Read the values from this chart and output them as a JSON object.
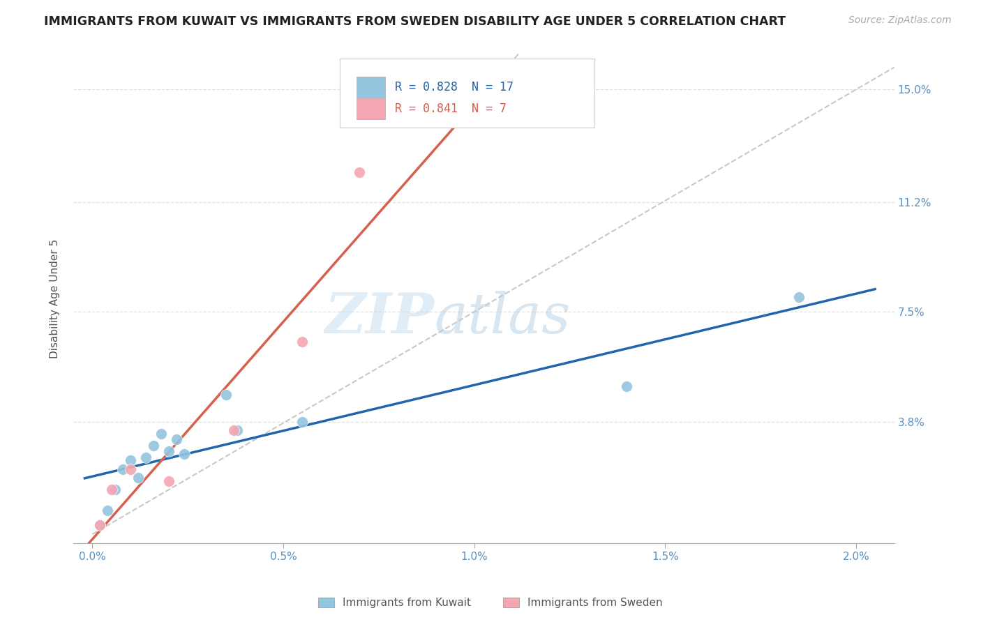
{
  "title": "IMMIGRANTS FROM KUWAIT VS IMMIGRANTS FROM SWEDEN DISABILITY AGE UNDER 5 CORRELATION CHART",
  "source": "Source: ZipAtlas.com",
  "ylabel": "Disability Age Under 5",
  "legend_label_1": "Immigrants from Kuwait",
  "legend_label_2": "Immigrants from Sweden",
  "r1": "0.828",
  "n1": "17",
  "r2": "0.841",
  "n2": "7",
  "color1": "#92c5de",
  "color2": "#f4a7b2",
  "line_color1": "#2166ac",
  "line_color2": "#d6604d",
  "ref_line_color": "#c8c8c8",
  "ytick_labels": [
    "3.8%",
    "7.5%",
    "11.2%",
    "15.0%"
  ],
  "ytick_values": [
    3.8,
    7.5,
    11.2,
    15.0
  ],
  "xtick_labels": [
    "0.0%",
    "0.5%",
    "1.0%",
    "1.5%",
    "2.0%"
  ],
  "xtick_values": [
    0.0,
    0.5,
    1.0,
    1.5,
    2.0
  ],
  "xlim": [
    -0.05,
    2.1
  ],
  "ylim": [
    -0.3,
    16.2
  ],
  "kuwait_x": [
    0.02,
    0.04,
    0.06,
    0.08,
    0.1,
    0.12,
    0.14,
    0.16,
    0.18,
    0.2,
    0.22,
    0.24,
    0.35,
    0.38,
    0.55,
    1.4,
    1.85
  ],
  "kuwait_y": [
    0.3,
    0.8,
    1.5,
    2.2,
    2.5,
    1.9,
    2.6,
    3.0,
    3.4,
    2.8,
    3.2,
    2.7,
    4.7,
    3.5,
    3.8,
    5.0,
    8.0
  ],
  "sweden_x": [
    0.02,
    0.05,
    0.1,
    0.2,
    0.37,
    0.55,
    0.7
  ],
  "sweden_y": [
    0.3,
    1.5,
    2.2,
    1.8,
    3.5,
    6.5,
    12.2
  ],
  "ref_line_x": [
    0.0,
    2.1
  ],
  "ref_line_y": [
    0.0,
    15.75
  ],
  "background_color": "#ffffff",
  "grid_color": "#e0e0e0",
  "watermark_zip": "ZIP",
  "watermark_atlas": "atlas",
  "title_fontsize": 12.5,
  "axis_label_fontsize": 11,
  "tick_fontsize": 11,
  "tick_color": "#5a8fc0",
  "legend_fontsize": 12,
  "source_fontsize": 10
}
